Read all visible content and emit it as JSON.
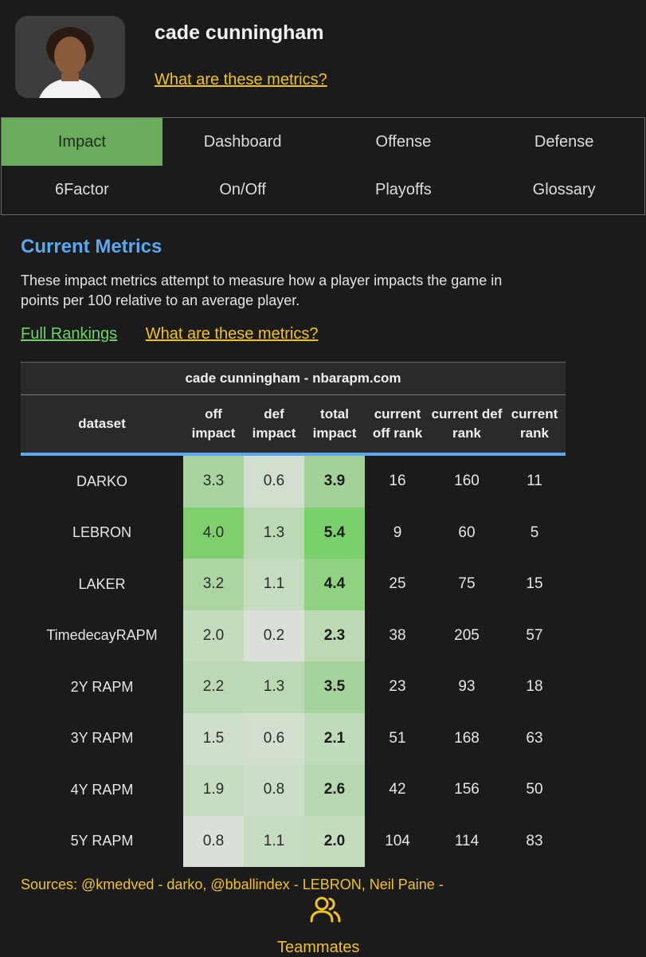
{
  "header": {
    "player_name": "cade cunningham",
    "metrics_link": "What are these metrics?"
  },
  "tabs": [
    {
      "label": "Impact",
      "active": true
    },
    {
      "label": "Dashboard",
      "active": false
    },
    {
      "label": "Offense",
      "active": false
    },
    {
      "label": "Defense",
      "active": false
    },
    {
      "label": "6Factor",
      "active": false
    },
    {
      "label": "On/Off",
      "active": false
    },
    {
      "label": "Playoffs",
      "active": false
    },
    {
      "label": "Glossary",
      "active": false
    }
  ],
  "section": {
    "title": "Current Metrics",
    "description": "These impact metrics attempt to measure how a player impacts the game in points per 100 relative to an average player.",
    "full_rankings": "Full Rankings",
    "metrics_link": "What are these metrics?"
  },
  "table": {
    "caption": "cade cunningham - nbarapm.com",
    "headers": [
      "dataset",
      "off impact",
      "def impact",
      "total impact",
      "current off rank",
      "current def rank",
      "current rank"
    ],
    "rows": [
      [
        "DARKO",
        "3.3",
        "0.6",
        "3.9",
        "16",
        "160",
        "11"
      ],
      [
        "LEBRON",
        "4.0",
        "1.3",
        "5.4",
        "9",
        "60",
        "5"
      ],
      [
        "LAKER",
        "3.2",
        "1.1",
        "4.4",
        "25",
        "75",
        "15"
      ],
      [
        "TimedecayRAPM",
        "2.0",
        "0.2",
        "2.3",
        "38",
        "205",
        "57"
      ],
      [
        "2Y RAPM",
        "2.2",
        "1.3",
        "3.5",
        "23",
        "93",
        "18"
      ],
      [
        "3Y RAPM",
        "1.5",
        "0.6",
        "2.1",
        "51",
        "168",
        "63"
      ],
      [
        "4Y RAPM",
        "1.9",
        "0.8",
        "2.6",
        "42",
        "156",
        "50"
      ],
      [
        "5Y RAPM",
        "0.8",
        "1.1",
        "2.0",
        "104",
        "114",
        "83"
      ]
    ],
    "cell_colors": [
      [
        "#a9d3a0",
        "#d2dfcf",
        "#a3d197"
      ],
      [
        "#7fcf6e",
        "#bcd9b5",
        "#7ad06b"
      ],
      [
        "#acd5a3",
        "#c5dcc0",
        "#8fd282"
      ],
      [
        "#c3dcbd",
        "#dadfd8",
        "#bcd9b4"
      ],
      [
        "#bcd9b5",
        "#bcd9b5",
        "#a6d29b"
      ],
      [
        "#cfdeca",
        "#d2dfcf",
        "#c0dbba"
      ],
      [
        "#c6ddc1",
        "#cbdec7",
        "#b6d8ae"
      ],
      [
        "#dadfd7",
        "#c5dcc0",
        "#c3dcbd"
      ]
    ]
  },
  "footer": {
    "sources": "Sources: @kmedved - darko, @bballindex - LEBRON, Neil Paine -",
    "teammates_label": "Teammates",
    "teammates_icon": "users-icon"
  },
  "colors": {
    "accent_blue": "#58a9f2",
    "link_yellow": "#f0c419",
    "link_green": "#6fd36a",
    "active_tab": "#6aab5c"
  }
}
